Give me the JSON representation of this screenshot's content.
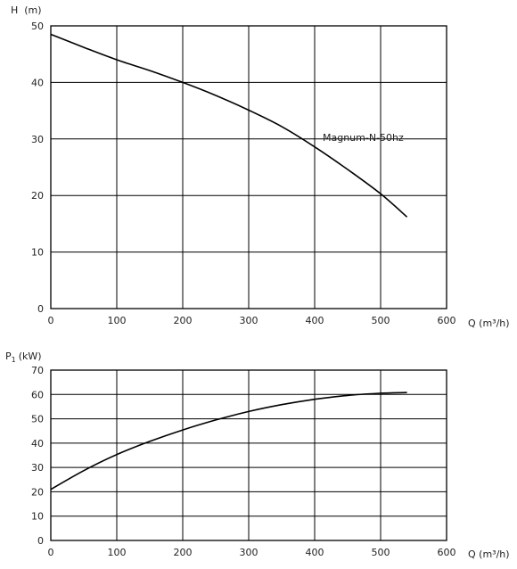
{
  "chart_data": [
    {
      "type": "line",
      "ylabel": "H  (m)",
      "xlabel": "Q (m³/h)",
      "xlim": [
        0,
        600
      ],
      "ylim": [
        0,
        50
      ],
      "x_ticks": [
        "0",
        "100",
        "200",
        "300",
        "400",
        "500",
        "600"
      ],
      "y_ticks": [
        "0",
        "10",
        "20",
        "30",
        "40",
        "50"
      ],
      "grid": true,
      "series": [
        {
          "name": "Magnum-N-50hz",
          "x": [
            0,
            50,
            100,
            150,
            200,
            250,
            300,
            350,
            400,
            450,
            500,
            540
          ],
          "y": [
            48.5,
            46.2,
            44.0,
            42.1,
            40.0,
            37.7,
            35.1,
            32.2,
            28.6,
            24.6,
            20.3,
            16.2
          ]
        }
      ]
    },
    {
      "type": "line",
      "ylabel_main": "P",
      "ylabel_sub": "1",
      "ylabel_unit": "(kW)",
      "xlabel": "Q (m³/h)",
      "xlim": [
        0,
        600
      ],
      "ylim": [
        0,
        70
      ],
      "x_ticks": [
        "0",
        "100",
        "200",
        "300",
        "400",
        "500",
        "600"
      ],
      "y_ticks": [
        "0",
        "10",
        "20",
        "30",
        "40",
        "50",
        "60",
        "70"
      ],
      "grid": true,
      "series": [
        {
          "x": [
            0,
            50,
            100,
            150,
            200,
            250,
            300,
            350,
            400,
            450,
            500,
            540
          ],
          "y": [
            21.0,
            28.7,
            35.3,
            40.7,
            45.4,
            49.5,
            53.0,
            55.8,
            58.0,
            59.6,
            60.5,
            60.8
          ]
        }
      ]
    }
  ]
}
